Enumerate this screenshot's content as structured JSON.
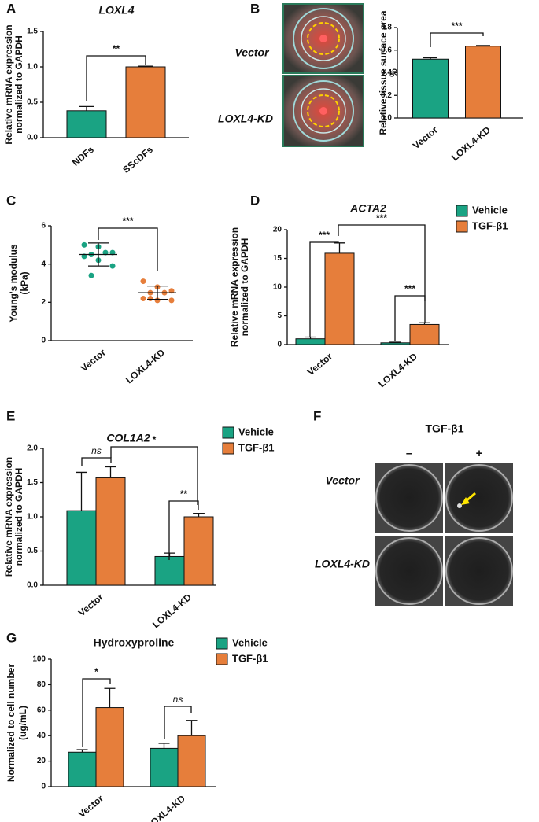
{
  "chart_data": [
    {
      "panel": "A",
      "type": "bar",
      "title": "LOXL4",
      "categories": [
        "NDFs",
        "SScDFs"
      ],
      "values": [
        0.38,
        1.0
      ],
      "errors": [
        0.06,
        0.01
      ],
      "color": "#1aa383",
      "colors": [
        "#1aa383",
        "#e67e3b"
      ],
      "ylabel": [
        "Relative mRNA expression",
        "normalized to GAPDH"
      ],
      "ylim": [
        0,
        1.5
      ],
      "yticks": [
        {
          "value": 0,
          "label": "0.0"
        },
        0.5,
        {
          "value": 1,
          "label": "1.0"
        },
        1.5
      ],
      "annotations": [
        "**"
      ]
    },
    {
      "panel": "B",
      "type": "bar",
      "image_rows": [
        "Vector",
        "LOXL4-KD"
      ],
      "categories": [
        "Vector",
        "LOXL4-KD"
      ],
      "values": [
        0.52,
        0.635
      ],
      "errors": [
        0.012,
        0.006
      ],
      "colors": [
        "#1aa383",
        "#e67e3b"
      ],
      "ylabel": [
        "Relative tissue surface area",
        "%"
      ],
      "ylim": [
        0,
        0.8
      ],
      "yticks": [
        {
          "value": 0,
          "label": "0.0"
        },
        0.2,
        0.4,
        0.6,
        0.8
      ],
      "annotations": [
        "***"
      ]
    },
    {
      "panel": "C",
      "type": "dot",
      "categories": [
        "Vector",
        "LOXL4-KD"
      ],
      "colors": [
        "#1aa383",
        "#e67e3b"
      ],
      "points": [
        [
          5.0,
          4.9,
          4.6,
          4.5,
          4.6,
          4.4,
          4.2,
          3.9,
          3.4
        ],
        [
          3.1,
          2.8,
          2.6,
          2.5,
          2.5,
          2.2,
          2.1,
          2.1,
          2.2
        ]
      ],
      "means": [
        4.5,
        2.5
      ],
      "sd": [
        0.6,
        0.35
      ],
      "ylabel": [
        "Young's  modulus",
        "(kPa)"
      ],
      "ylim": [
        0,
        6
      ],
      "yticks": [
        0,
        2,
        4,
        6
      ],
      "annotations": [
        "***"
      ]
    },
    {
      "panel": "D",
      "type": "bar",
      "title": "ACTA2",
      "categories": [
        "Vector",
        "LOXL4-KD"
      ],
      "series": [
        {
          "name": "Vehicle",
          "color": "#1aa383",
          "values": [
            1.0,
            0.3
          ],
          "errors": [
            0.3,
            0.1
          ]
        },
        {
          "name": "TGF-β1",
          "color": "#e67e3b",
          "values": [
            15.9,
            3.5
          ],
          "errors": [
            1.8,
            0.3
          ]
        }
      ],
      "ylabel": [
        "Relative mRNA expression",
        "normalized to GAPDH"
      ],
      "ylim": [
        0,
        20
      ],
      "yticks": [
        0,
        5,
        10,
        15,
        20
      ],
      "annotations": [
        "***",
        "***",
        "***"
      ]
    },
    {
      "panel": "E",
      "type": "bar",
      "title": "COL1A2",
      "categories": [
        "Vector",
        "LOXL4-KD"
      ],
      "series": [
        {
          "name": "Vehicle",
          "color": "#1aa383",
          "values": [
            1.09,
            0.42
          ],
          "errors": [
            0.56,
            0.05
          ]
        },
        {
          "name": "TGF-β1",
          "color": "#e67e3b",
          "values": [
            1.57,
            1.0
          ],
          "errors": [
            0.16,
            0.05
          ]
        }
      ],
      "ylabel": [
        "Relative mRNA expression",
        "normalized to GAPDH"
      ],
      "ylim": [
        0,
        2
      ],
      "yticks": [
        {
          "value": 0,
          "label": "0.0"
        },
        0.5,
        {
          "value": 1,
          "label": "1.0"
        },
        1.5,
        {
          "value": 2,
          "label": "2.0"
        }
      ],
      "annotations": [
        "ns",
        "*",
        "**"
      ]
    },
    {
      "panel": "F",
      "type": "image",
      "title": "TGF-β1",
      "columns": [
        "–",
        "+"
      ],
      "rows": [
        "Vector",
        "LOXL4-KD"
      ]
    },
    {
      "panel": "G",
      "type": "bar",
      "title": "Hydroxyproline",
      "categories": [
        "Vector",
        "LOXL4-KD"
      ],
      "series": [
        {
          "name": "Vehicle",
          "color": "#1aa383",
          "values": [
            27,
            30
          ],
          "errors": [
            2,
            4
          ]
        },
        {
          "name": "TGF-β1",
          "color": "#e67e3b",
          "values": [
            62,
            40
          ],
          "errors": [
            15,
            12
          ]
        }
      ],
      "ylabel": [
        "Normalized to cell number",
        "(ug/mL)"
      ],
      "ylim": [
        0,
        100
      ],
      "yticks": [
        0,
        20,
        40,
        60,
        80,
        100
      ],
      "annotations": [
        "*",
        "ns"
      ]
    }
  ]
}
